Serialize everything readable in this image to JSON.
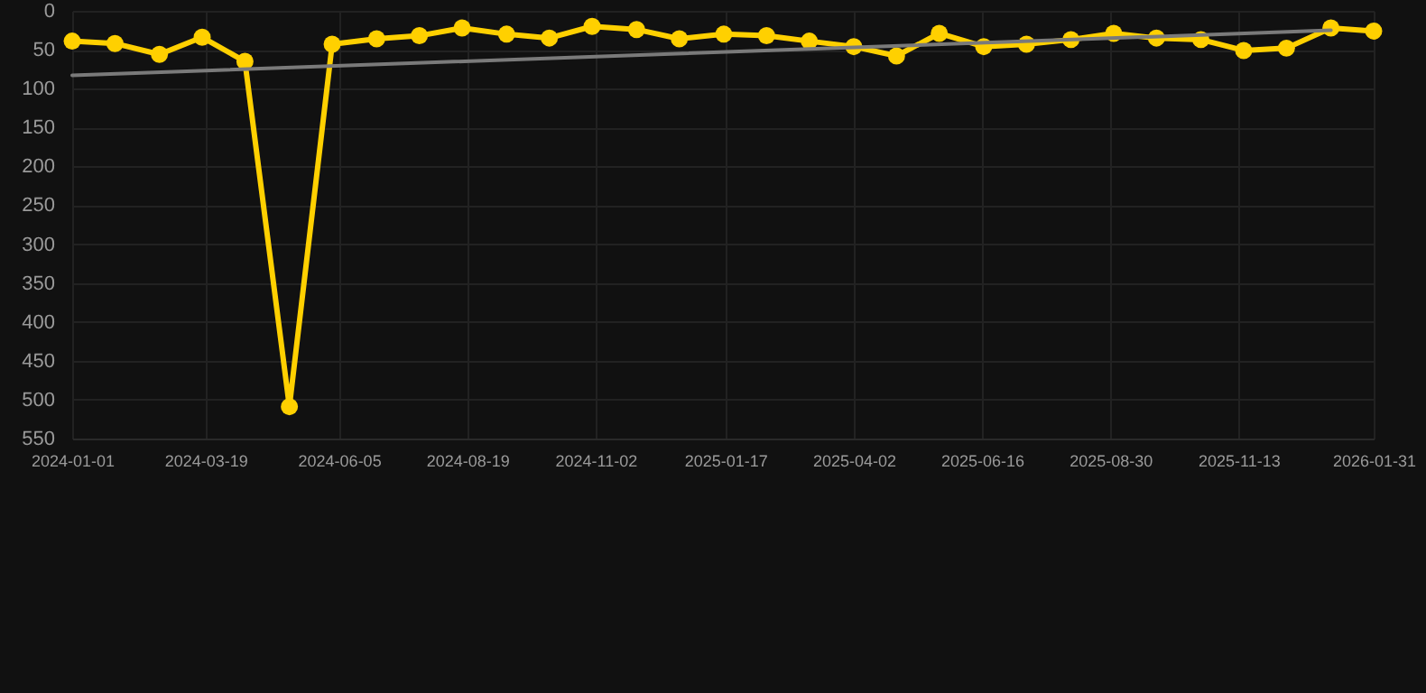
{
  "chart_data": {
    "type": "line",
    "x": [
      "2024-01-01",
      "2024-01-26",
      "2024-02-21",
      "2024-03-17",
      "2024-04-11",
      "2024-05-07",
      "2024-06-01",
      "2024-06-27",
      "2024-07-22",
      "2024-08-16",
      "2024-09-11",
      "2024-10-06",
      "2024-10-31",
      "2024-11-26",
      "2024-12-21",
      "2025-01-16",
      "2025-02-10",
      "2025-03-07",
      "2025-04-02",
      "2025-04-27",
      "2025-05-22",
      "2025-06-17",
      "2025-07-12",
      "2025-08-07",
      "2025-09-01",
      "2025-09-26",
      "2025-10-22",
      "2025-11-16",
      "2025-12-11",
      "2026-01-06",
      "2026-01-31"
    ],
    "series": [
      {
        "color": "#ffd000",
        "marker": "circle",
        "values": [
          39,
          42,
          56,
          34,
          65,
          509,
          43,
          36,
          32,
          22,
          30,
          35,
          20,
          24,
          36,
          30,
          32,
          39,
          46,
          58,
          29,
          46,
          43,
          37,
          29,
          35,
          37,
          51,
          48,
          22,
          26
        ]
      },
      {
        "type": "line",
        "color": "#7a7a7a",
        "marker": "none",
        "x": [
          "2024-01-01",
          "2026-01-06"
        ],
        "values": [
          83,
          25
        ]
      }
    ],
    "xlim": [
      "2024-01-01",
      "2026-01-31"
    ],
    "xticks": [
      "2024-01-01",
      "2024-03-19",
      "2024-06-05",
      "2024-08-19",
      "2024-11-02",
      "2025-01-17",
      "2025-04-02",
      "2025-06-16",
      "2025-08-30",
      "2025-11-13",
      "2026-01-31"
    ],
    "ylim": [
      550,
      0
    ],
    "yticks": [
      0,
      50,
      100,
      150,
      200,
      250,
      300,
      350,
      400,
      450,
      500,
      550
    ],
    "grid": true,
    "line_style": "solid"
  }
}
